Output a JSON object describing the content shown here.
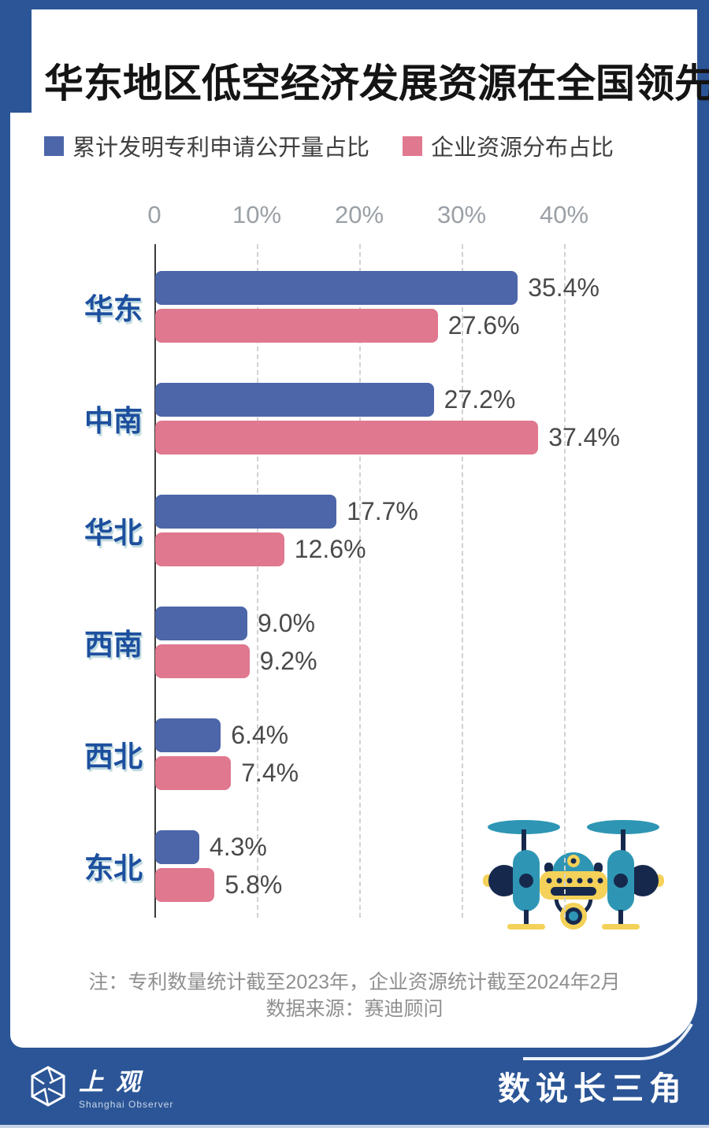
{
  "title": "华东地区低空经济发展资源在全国领先",
  "legend": [
    {
      "label": "累计发明专利申请公开量占比",
      "color": "#4d66aa"
    },
    {
      "label": "企业资源分布占比",
      "color": "#e0788f"
    }
  ],
  "chart_data": {
    "type": "bar",
    "orientation": "horizontal",
    "categories": [
      "华东",
      "中南",
      "华北",
      "西南",
      "西北",
      "东北"
    ],
    "series": [
      {
        "name": "累计发明专利申请公开量占比",
        "color": "#4d66aa",
        "values": [
          35.4,
          27.2,
          17.7,
          9.0,
          6.4,
          4.3
        ]
      },
      {
        "name": "企业资源分布占比",
        "color": "#e0788f",
        "values": [
          27.6,
          37.4,
          12.6,
          9.2,
          7.4,
          5.8
        ]
      }
    ],
    "value_suffix": "%",
    "x_ticks": [
      {
        "value": 0,
        "label": "0"
      },
      {
        "value": 10,
        "label": "10%"
      },
      {
        "value": 20,
        "label": "20%"
      },
      {
        "value": 30,
        "label": "30%"
      },
      {
        "value": 40,
        "label": "40%"
      }
    ],
    "xlim": [
      0,
      42
    ],
    "grid": "dashed-vertical",
    "legend_position": "top"
  },
  "notes": {
    "line1": "注：专利数量统计截至2023年，企业资源统计截至2024年2月",
    "line2": "数据来源：赛迪顾问"
  },
  "footer": {
    "logo_text": "上观",
    "logo_subtext": "Shanghai Observer",
    "series_title": "数说长三角"
  },
  "colors": {
    "frame": "#2b5596",
    "bar_blue": "#4d66aa",
    "bar_pink": "#e0788f",
    "category_label": "#1d4f9e",
    "value_label": "#4a4a4a",
    "tick_label": "#9aa0a6",
    "bottom_strip": "#c9d3e7",
    "drone_teal": "#2e96b4",
    "drone_navy": "#16294d",
    "drone_yellow": "#f4d158"
  }
}
